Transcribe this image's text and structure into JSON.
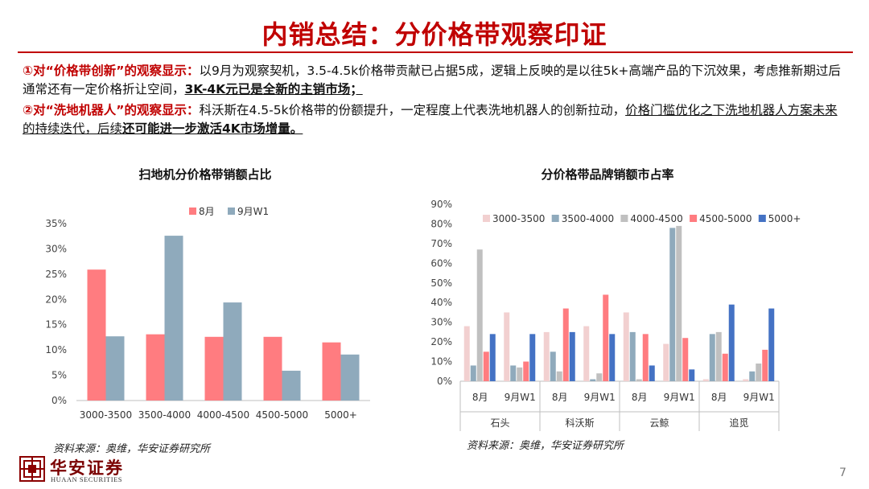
{
  "title": "内销总结：分价格带观察印证",
  "para1": {
    "lead": "①对“价格带创新”的观察显示：",
    "text": "以9月为观察契机，3.5-4.5k价格带贡献已占据5成，逻辑上反映的是以往5k+高端产品的下沉效果，考虑推新期过后通常还有一定价格折让空间，",
    "bold": "3K-4K元已是全新的主销市场；"
  },
  "para2": {
    "lead": "②对“洗地机器人”的观察显示：",
    "text1": "科沃斯在4.5-5k价格带的份额提升，一定程度上代表洗地机器人的创新拉动，",
    "underline": "价格门槛优化之下洗地机器人方案未来的持续迭代，后续",
    "bold": "还可能进一步激活4K市场增量。"
  },
  "chart_data": [
    {
      "type": "bar",
      "title": "扫地机分价格带销额占比",
      "categories": [
        "3000-3500",
        "3500-4000",
        "4000-4500",
        "4500-5000",
        "5000+"
      ],
      "series": [
        {
          "name": "8月",
          "values": [
            0.259,
            0.131,
            0.126,
            0.126,
            0.115
          ],
          "color": "#ff7c80"
        },
        {
          "name": "9月W1",
          "values": [
            0.127,
            0.326,
            0.194,
            0.059,
            0.091
          ],
          "color": "#8faabc"
        }
      ],
      "ylim": [
        0,
        0.35
      ],
      "yticks": [
        "0%",
        "5%",
        "10%",
        "15%",
        "20%",
        "25%",
        "30%",
        "35%"
      ],
      "legend": "top-center",
      "grid": false
    },
    {
      "type": "bar",
      "title": "分价格带品牌销额市占率",
      "groups": [
        "石头",
        "科沃斯",
        "云鲸",
        "追觅"
      ],
      "categories": [
        "8月",
        "9月W1",
        "8月",
        "9月W1",
        "8月",
        "9月W1",
        "8月",
        "9月W1"
      ],
      "series": [
        {
          "name": "3000-3500",
          "values": [
            0.28,
            0.35,
            0.25,
            0.28,
            0.35,
            0.19,
            0.01,
            0.01
          ],
          "color": "#f2d0d0"
        },
        {
          "name": "3500-4000",
          "values": [
            0.08,
            0.08,
            0.15,
            0.01,
            0.25,
            0.78,
            0.24,
            0.05
          ],
          "color": "#8faabc"
        },
        {
          "name": "4000-4500",
          "values": [
            0.67,
            0.07,
            0.05,
            0.04,
            0.01,
            0.79,
            0.25,
            0.09
          ],
          "color": "#c0c0c0"
        },
        {
          "name": "4500-5000",
          "values": [
            0.15,
            0.1,
            0.37,
            0.44,
            0.24,
            0.22,
            0.14,
            0.16
          ],
          "color": "#ff7c80"
        },
        {
          "name": "5000+",
          "values": [
            0.24,
            0.24,
            0.25,
            0.24,
            0.08,
            0.06,
            0.39,
            0.37
          ],
          "color": "#4472c4"
        }
      ],
      "ylim": [
        0,
        0.9
      ],
      "yticks": [
        "0%",
        "10%",
        "20%",
        "30%",
        "40%",
        "50%",
        "60%",
        "70%",
        "80%",
        "90%"
      ],
      "legend": "top",
      "grid": false
    }
  ],
  "source1": "资料来源：奥维，华安证券研究所",
  "source2": "资料来源：奥维，华安证券研究所",
  "logo": {
    "cn": "华安证券",
    "en": "HUAAN SECURITIES"
  },
  "page_number": "7"
}
